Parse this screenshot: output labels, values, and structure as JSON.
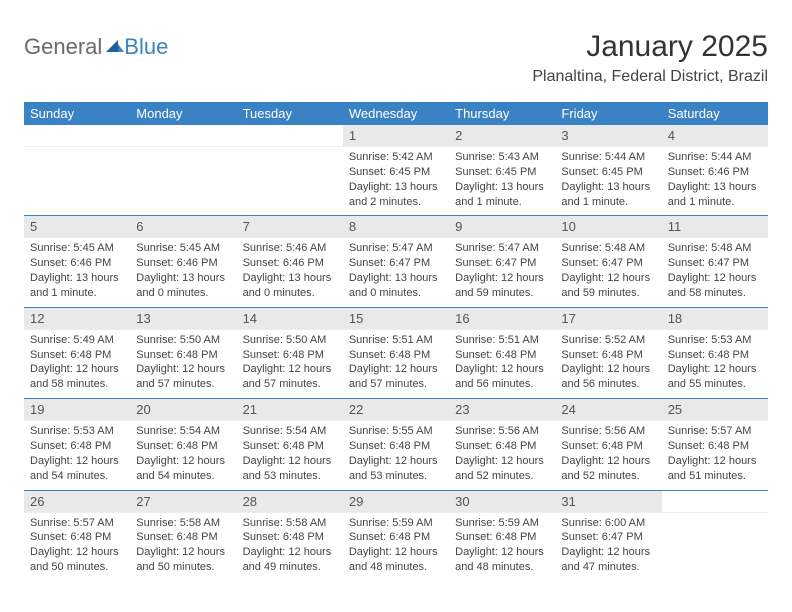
{
  "brand": {
    "part1": "General",
    "part2": "Blue"
  },
  "title": "January 2025",
  "location": "Planaltina, Federal District, Brazil",
  "colors": {
    "header_bg": "#3b82c4",
    "header_text": "#ffffff",
    "daynum_bg": "#e9e9e9",
    "text": "#444444",
    "rule": "#3b82c4"
  },
  "weekdays": [
    "Sunday",
    "Monday",
    "Tuesday",
    "Wednesday",
    "Thursday",
    "Friday",
    "Saturday"
  ],
  "weeks": [
    [
      null,
      null,
      null,
      {
        "n": "1",
        "sr": "Sunrise: 5:42 AM",
        "ss": "Sunset: 6:45 PM",
        "dl": "Daylight: 13 hours and 2 minutes."
      },
      {
        "n": "2",
        "sr": "Sunrise: 5:43 AM",
        "ss": "Sunset: 6:45 PM",
        "dl": "Daylight: 13 hours and 1 minute."
      },
      {
        "n": "3",
        "sr": "Sunrise: 5:44 AM",
        "ss": "Sunset: 6:45 PM",
        "dl": "Daylight: 13 hours and 1 minute."
      },
      {
        "n": "4",
        "sr": "Sunrise: 5:44 AM",
        "ss": "Sunset: 6:46 PM",
        "dl": "Daylight: 13 hours and 1 minute."
      }
    ],
    [
      {
        "n": "5",
        "sr": "Sunrise: 5:45 AM",
        "ss": "Sunset: 6:46 PM",
        "dl": "Daylight: 13 hours and 1 minute."
      },
      {
        "n": "6",
        "sr": "Sunrise: 5:45 AM",
        "ss": "Sunset: 6:46 PM",
        "dl": "Daylight: 13 hours and 0 minutes."
      },
      {
        "n": "7",
        "sr": "Sunrise: 5:46 AM",
        "ss": "Sunset: 6:46 PM",
        "dl": "Daylight: 13 hours and 0 minutes."
      },
      {
        "n": "8",
        "sr": "Sunrise: 5:47 AM",
        "ss": "Sunset: 6:47 PM",
        "dl": "Daylight: 13 hours and 0 minutes."
      },
      {
        "n": "9",
        "sr": "Sunrise: 5:47 AM",
        "ss": "Sunset: 6:47 PM",
        "dl": "Daylight: 12 hours and 59 minutes."
      },
      {
        "n": "10",
        "sr": "Sunrise: 5:48 AM",
        "ss": "Sunset: 6:47 PM",
        "dl": "Daylight: 12 hours and 59 minutes."
      },
      {
        "n": "11",
        "sr": "Sunrise: 5:48 AM",
        "ss": "Sunset: 6:47 PM",
        "dl": "Daylight: 12 hours and 58 minutes."
      }
    ],
    [
      {
        "n": "12",
        "sr": "Sunrise: 5:49 AM",
        "ss": "Sunset: 6:48 PM",
        "dl": "Daylight: 12 hours and 58 minutes."
      },
      {
        "n": "13",
        "sr": "Sunrise: 5:50 AM",
        "ss": "Sunset: 6:48 PM",
        "dl": "Daylight: 12 hours and 57 minutes."
      },
      {
        "n": "14",
        "sr": "Sunrise: 5:50 AM",
        "ss": "Sunset: 6:48 PM",
        "dl": "Daylight: 12 hours and 57 minutes."
      },
      {
        "n": "15",
        "sr": "Sunrise: 5:51 AM",
        "ss": "Sunset: 6:48 PM",
        "dl": "Daylight: 12 hours and 57 minutes."
      },
      {
        "n": "16",
        "sr": "Sunrise: 5:51 AM",
        "ss": "Sunset: 6:48 PM",
        "dl": "Daylight: 12 hours and 56 minutes."
      },
      {
        "n": "17",
        "sr": "Sunrise: 5:52 AM",
        "ss": "Sunset: 6:48 PM",
        "dl": "Daylight: 12 hours and 56 minutes."
      },
      {
        "n": "18",
        "sr": "Sunrise: 5:53 AM",
        "ss": "Sunset: 6:48 PM",
        "dl": "Daylight: 12 hours and 55 minutes."
      }
    ],
    [
      {
        "n": "19",
        "sr": "Sunrise: 5:53 AM",
        "ss": "Sunset: 6:48 PM",
        "dl": "Daylight: 12 hours and 54 minutes."
      },
      {
        "n": "20",
        "sr": "Sunrise: 5:54 AM",
        "ss": "Sunset: 6:48 PM",
        "dl": "Daylight: 12 hours and 54 minutes."
      },
      {
        "n": "21",
        "sr": "Sunrise: 5:54 AM",
        "ss": "Sunset: 6:48 PM",
        "dl": "Daylight: 12 hours and 53 minutes."
      },
      {
        "n": "22",
        "sr": "Sunrise: 5:55 AM",
        "ss": "Sunset: 6:48 PM",
        "dl": "Daylight: 12 hours and 53 minutes."
      },
      {
        "n": "23",
        "sr": "Sunrise: 5:56 AM",
        "ss": "Sunset: 6:48 PM",
        "dl": "Daylight: 12 hours and 52 minutes."
      },
      {
        "n": "24",
        "sr": "Sunrise: 5:56 AM",
        "ss": "Sunset: 6:48 PM",
        "dl": "Daylight: 12 hours and 52 minutes."
      },
      {
        "n": "25",
        "sr": "Sunrise: 5:57 AM",
        "ss": "Sunset: 6:48 PM",
        "dl": "Daylight: 12 hours and 51 minutes."
      }
    ],
    [
      {
        "n": "26",
        "sr": "Sunrise: 5:57 AM",
        "ss": "Sunset: 6:48 PM",
        "dl": "Daylight: 12 hours and 50 minutes."
      },
      {
        "n": "27",
        "sr": "Sunrise: 5:58 AM",
        "ss": "Sunset: 6:48 PM",
        "dl": "Daylight: 12 hours and 50 minutes."
      },
      {
        "n": "28",
        "sr": "Sunrise: 5:58 AM",
        "ss": "Sunset: 6:48 PM",
        "dl": "Daylight: 12 hours and 49 minutes."
      },
      {
        "n": "29",
        "sr": "Sunrise: 5:59 AM",
        "ss": "Sunset: 6:48 PM",
        "dl": "Daylight: 12 hours and 48 minutes."
      },
      {
        "n": "30",
        "sr": "Sunrise: 5:59 AM",
        "ss": "Sunset: 6:48 PM",
        "dl": "Daylight: 12 hours and 48 minutes."
      },
      {
        "n": "31",
        "sr": "Sunrise: 6:00 AM",
        "ss": "Sunset: 6:47 PM",
        "dl": "Daylight: 12 hours and 47 minutes."
      },
      null
    ]
  ]
}
